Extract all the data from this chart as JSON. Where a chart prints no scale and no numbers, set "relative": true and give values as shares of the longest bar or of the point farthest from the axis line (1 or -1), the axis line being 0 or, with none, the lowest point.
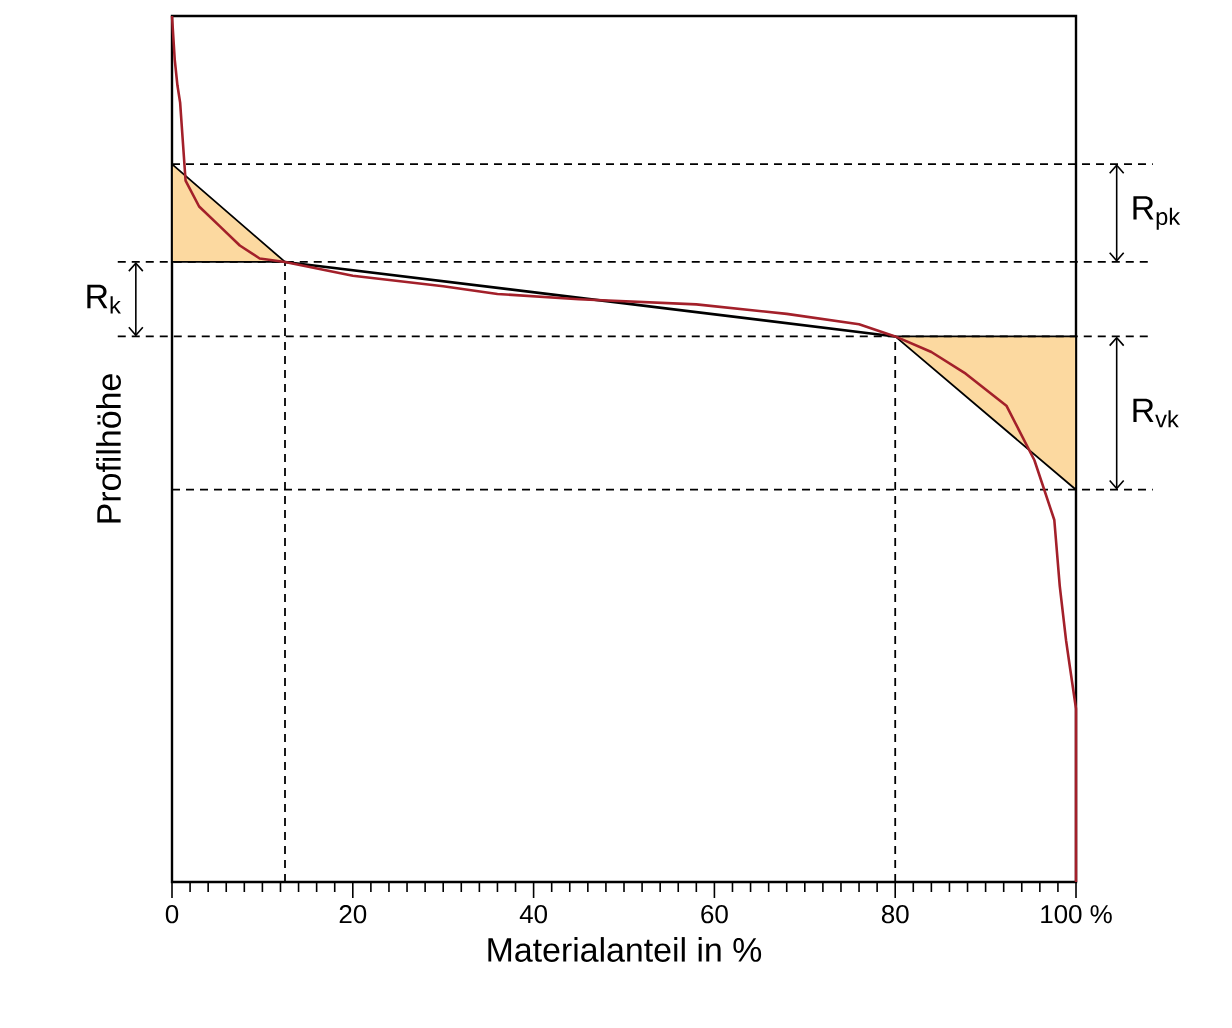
{
  "chart_data": {
    "type": "line",
    "relative": true,
    "xlabel": "Materialanteil in %",
    "ylabel": "Profilhöhe",
    "xlim": [
      0,
      100
    ],
    "xticks": [
      0,
      20,
      40,
      60,
      {
        "value": 80,
        "label": "80"
      },
      {
        "value": 100,
        "label": "100 %"
      }
    ],
    "tick_labels": "x",
    "grid": false,
    "series": [
      {
        "color": "#a3202a",
        "x": [
          0,
          0.3,
          0.6,
          0.9,
          1.5,
          3,
          5.3,
          7.5,
          9.7,
          12.5,
          20,
          30,
          36,
          45,
          58,
          68,
          76,
          80,
          84,
          87.8,
          92.3,
          95.4,
          97.6,
          98.2,
          98.9,
          99.3,
          100,
          100
        ],
        "values": [
          1.0,
          0.95,
          0.92,
          0.9,
          0.81,
          0.78,
          0.757,
          0.735,
          0.72,
          0.716,
          0.7,
          0.688,
          0.679,
          0.673,
          0.667,
          0.656,
          0.644,
          0.63,
          0.612,
          0.587,
          0.55,
          0.487,
          0.418,
          0.342,
          0.279,
          0.25,
          0.2,
          0
        ]
      },
      {
        "type": "area",
        "color": "#fcd9a0",
        "x": [
          0,
          0,
          12.5
        ],
        "values": [
          0.716,
          0.829,
          0.716
        ]
      },
      {
        "type": "area",
        "color": "#fcd9a0",
        "x": [
          80,
          100,
          100
        ],
        "values": [
          0.63,
          0.63,
          0.453
        ]
      },
      {
        "color": "#000000",
        "x": [
          12.5,
          80
        ],
        "values": [
          0.716,
          0.63
        ]
      }
    ],
    "ref_lines": [
      {
        "axis": "y",
        "value": 0.829,
        "line_style": "dashed"
      },
      {
        "axis": "y",
        "value": 0.716,
        "line_style": "dashed"
      },
      {
        "axis": "y",
        "value": 0.63,
        "line_style": "dashed"
      },
      {
        "axis": "y",
        "value": 0.453,
        "line_style": "dashed"
      },
      {
        "axis": "x",
        "value": 12.5,
        "line_style": "dashed"
      },
      {
        "axis": "x",
        "value": 80,
        "line_style": "dashed"
      }
    ],
    "annotations": [
      "R$_{pk}$",
      "R$_{k}$",
      "R$_{vk}$"
    ]
  }
}
